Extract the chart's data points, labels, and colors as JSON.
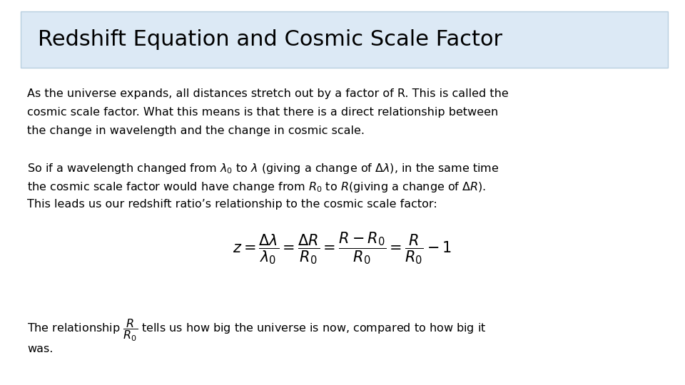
{
  "title": "Redshift Equation and Cosmic Scale Factor",
  "title_fontsize": 22,
  "title_bg_color": "#dce9f5",
  "body_bg_color": "#ffffff",
  "text_color": "#000000",
  "border_color": "#b8cfe0",
  "para1_line1": "As the universe expands, all distances stretch out by a factor of R. This is called the",
  "para1_line2": "cosmic scale factor. What this means is that there is a direct relationship between",
  "para1_line3": "the change in wavelength and the change in cosmic scale.",
  "para2_line1": "So if a wavelength changed from $\\lambda_0$ to $\\lambda$ (giving a change of $\\Delta\\lambda$), in the same time",
  "para2_line2": "the cosmic scale factor would have change from $R_0$ to $R$(giving a change of $\\Delta R$).",
  "para2_line3": "This leads us our redshift ratio’s relationship to the cosmic scale factor:",
  "equation": "$z = \\dfrac{\\Delta\\lambda}{\\lambda_0} = \\dfrac{\\Delta R}{R_0} = \\dfrac{R - R_0}{R_0} = \\dfrac{R}{R_0} - 1$",
  "para3_line1": "The relationship $\\dfrac{R}{R_0}$ tells us how big the universe is now, compared to how big it",
  "para3_line2": "was.",
  "font_size_body": 11.5,
  "eq_fontsize": 15
}
